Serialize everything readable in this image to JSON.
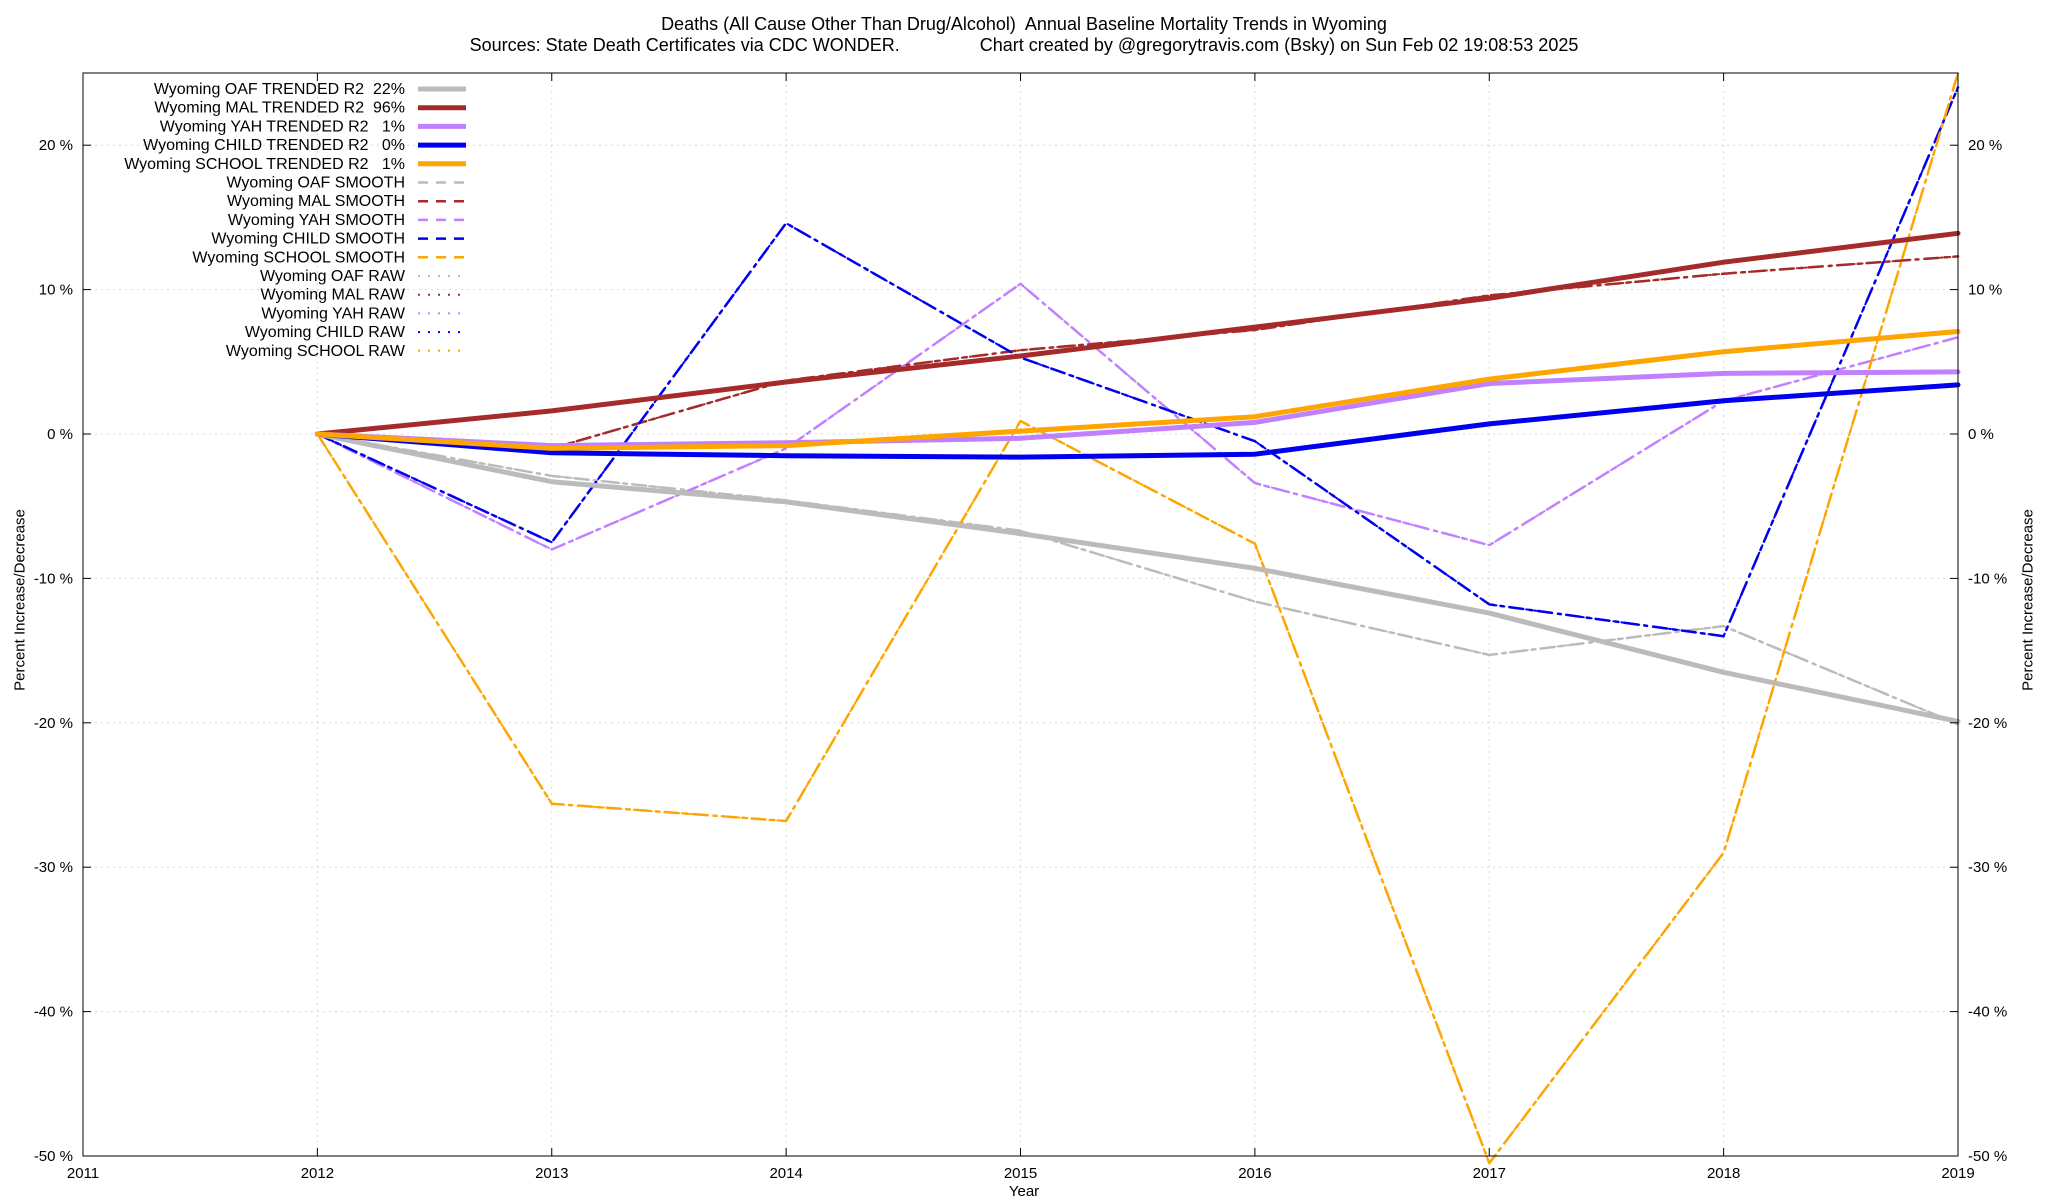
{
  "chart_data": {
    "type": "line",
    "title": "Deaths (All Cause Other Than Drug/Alcohol)  Annual Baseline Mortality Trends in Wyoming",
    "subtitle": "Sources: State Death Certificates via CDC WONDER.                Chart created by @gregorytravis.com (Bsky) on Sun Feb 02 19:08:53 2025",
    "xlabel": "Year",
    "ylabel": "Percent Increase/Decrease",
    "xlim": [
      2011,
      2019
    ],
    "ylim": [
      -50,
      25
    ],
    "x_ticks": [
      "2011",
      "2012",
      "2013",
      "2014",
      "2015",
      "2016",
      "2017",
      "2018",
      "2019"
    ],
    "y_ticks": [
      {
        "value": 20,
        "label": "20 %"
      },
      {
        "value": 10,
        "label": "10 %"
      },
      {
        "value": 0,
        "label": "0 %"
      },
      {
        "value": -10,
        "label": "-10 %"
      },
      {
        "value": -20,
        "label": "-20 %"
      },
      {
        "value": -30,
        "label": "-30 %"
      },
      {
        "value": -40,
        "label": "-40 %"
      },
      {
        "value": -50,
        "label": "-50 %"
      }
    ],
    "grid": true,
    "legend_position": "top-left",
    "x": [
      2012,
      2013,
      2014,
      2015,
      2016,
      2017,
      2018,
      2019
    ],
    "series": [
      {
        "name": "Wyoming OAF TRENDED R2  22%",
        "color": "#bbbbbb",
        "style": "trended",
        "values": [
          0,
          -3.3,
          -4.7,
          -6.9,
          -9.3,
          -12.4,
          -16.5,
          -19.9
        ]
      },
      {
        "name": "Wyoming MAL TRENDED R2  96%",
        "color": "#a52a2a",
        "style": "trended",
        "values": [
          0,
          1.6,
          3.6,
          5.4,
          7.4,
          9.4,
          11.9,
          13.9
        ]
      },
      {
        "name": "Wyoming YAH TRENDED R2   1%",
        "color": "#c080ff",
        "style": "trended",
        "values": [
          0,
          -0.8,
          -0.6,
          -0.3,
          0.8,
          3.5,
          4.2,
          4.3
        ]
      },
      {
        "name": "Wyoming CHILD TRENDED R2   0%",
        "color": "#0000ee",
        "style": "trended",
        "values": [
          0,
          -1.3,
          -1.5,
          -1.6,
          -1.4,
          0.7,
          2.3,
          3.4
        ]
      },
      {
        "name": "Wyoming SCHOOL TRENDED R2   1%",
        "color": "#ffa500",
        "style": "trended",
        "values": [
          0,
          -1.0,
          -0.8,
          0.2,
          1.2,
          3.8,
          5.7,
          7.1
        ]
      },
      {
        "name": "Wyoming OAF SMOOTH",
        "color": "#bbbbbb",
        "style": "smooth",
        "values": [
          0,
          -2.9,
          -4.6,
          -6.7,
          -11.6,
          -15.3,
          -13.3,
          -20.1
        ]
      },
      {
        "name": "Wyoming MAL SMOOTH",
        "color": "#a52a2a",
        "style": "smooth",
        "values": [
          0,
          -1.0,
          3.7,
          5.8,
          7.2,
          9.6,
          11.1,
          12.3
        ]
      },
      {
        "name": "Wyoming YAH SMOOTH",
        "color": "#c080ff",
        "style": "smooth",
        "values": [
          0,
          -8.0,
          -1.0,
          10.4,
          -3.4,
          -7.7,
          2.3,
          6.7
        ]
      },
      {
        "name": "Wyoming CHILD SMOOTH",
        "color": "#0000ee",
        "style": "smooth",
        "values": [
          0,
          -7.5,
          14.6,
          5.3,
          -0.5,
          -11.8,
          -14.0,
          24.0
        ]
      },
      {
        "name": "Wyoming SCHOOL SMOOTH",
        "color": "#ffa500",
        "style": "smooth",
        "values": [
          0,
          -25.6,
          -26.8,
          0.9,
          -7.6,
          -50.5,
          -29.0,
          25.0
        ]
      },
      {
        "name": "Wyoming OAF RAW",
        "color": "#bbbbbb",
        "style": "raw",
        "values": [
          0,
          -2.9,
          -4.6,
          -6.7,
          -11.6,
          -15.3,
          -13.3,
          -20.1
        ]
      },
      {
        "name": "Wyoming MAL RAW",
        "color": "#a52a2a",
        "style": "raw",
        "values": [
          0,
          -1.0,
          3.7,
          5.8,
          7.2,
          9.6,
          11.1,
          12.3
        ]
      },
      {
        "name": "Wyoming YAH RAW",
        "color": "#c080ff",
        "style": "raw",
        "values": [
          0,
          -8.0,
          -1.0,
          10.4,
          -3.4,
          -7.7,
          2.3,
          6.7
        ]
      },
      {
        "name": "Wyoming CHILD RAW",
        "color": "#0000ee",
        "style": "raw",
        "values": [
          0,
          -7.5,
          14.6,
          5.3,
          -0.5,
          -11.8,
          -14.0,
          24.0
        ]
      },
      {
        "name": "Wyoming SCHOOL RAW",
        "color": "#ffa500",
        "style": "raw",
        "values": [
          0,
          -25.6,
          -26.8,
          0.9,
          -7.6,
          -50.5,
          -29.0,
          25.0
        ]
      }
    ]
  }
}
